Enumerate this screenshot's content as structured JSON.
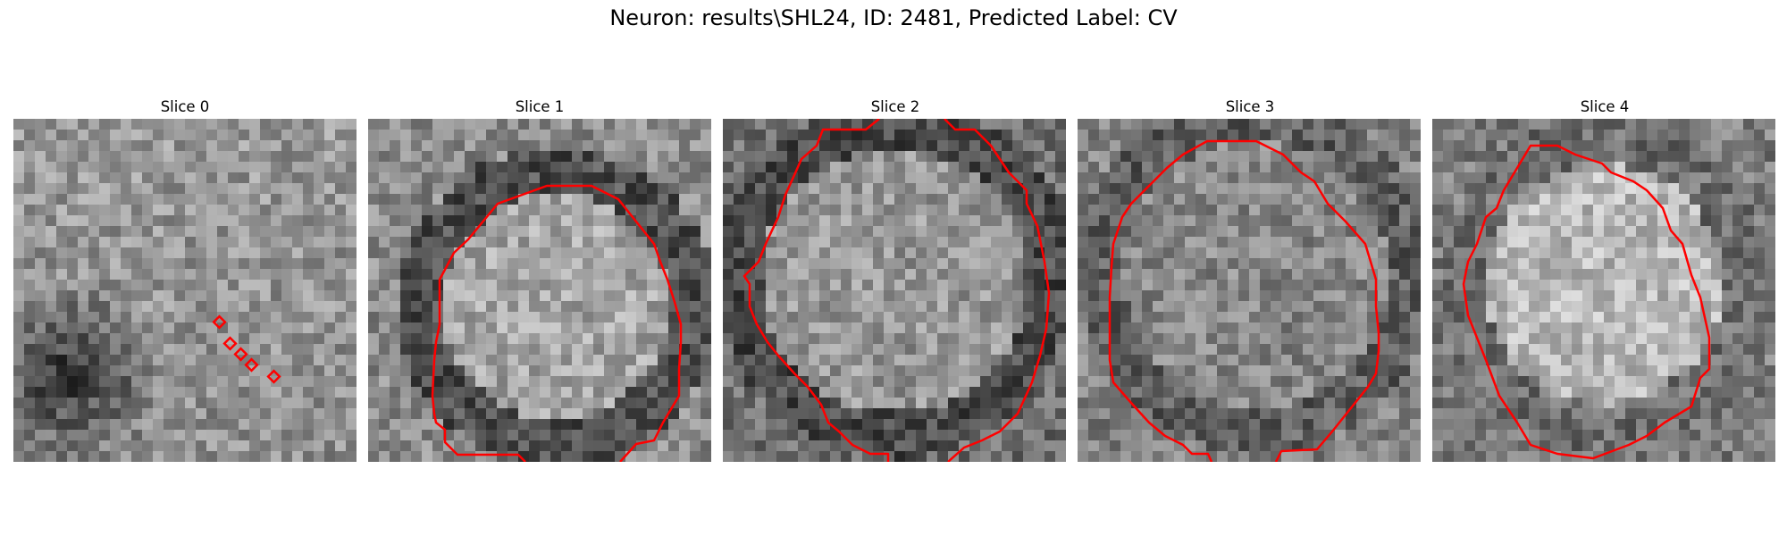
{
  "figure": {
    "title": "Neuron: results\\SHL24, ID: 2481, Predicted Label: CV"
  },
  "colors": {
    "contour": "#ff0000",
    "colormap": "gray"
  },
  "panels": [
    {
      "label": "Slice 0",
      "contour_shape": "small-diamond-markers"
    },
    {
      "label": "Slice 1",
      "contour_shape": "open-octagon-cut-at-bottom"
    },
    {
      "label": "Slice 2",
      "contour_shape": "large-octagon-cut-at-top-and-bottom"
    },
    {
      "label": "Slice 3",
      "contour_shape": "octagon-cut-at-bottom"
    },
    {
      "label": "Slice 4",
      "contour_shape": "closed-octagon"
    }
  ]
}
